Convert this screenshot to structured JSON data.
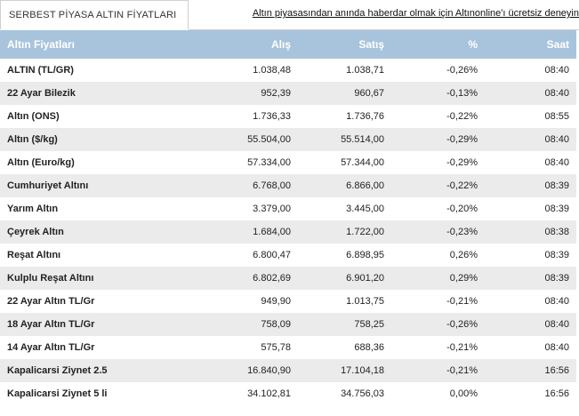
{
  "header": {
    "tab_title": "SERBEST PİYASA ALTIN FİYATLARI",
    "promo_link": "Altın piyasasından anında haberdar olmak için Altınonline'ı ücretsiz deneyin"
  },
  "table": {
    "columns": [
      "Altın Fiyatları",
      "Alış",
      "Satış",
      "%",
      "Saat"
    ],
    "rows": [
      {
        "name": "ALTIN (TL/GR)",
        "alis": "1.038,48",
        "satis": "1.038,71",
        "pct": "-0,26%",
        "saat": "08:40"
      },
      {
        "name": "22 Ayar Bilezik",
        "alis": "952,39",
        "satis": "960,67",
        "pct": "-0,13%",
        "saat": "08:40"
      },
      {
        "name": "Altın (ONS)",
        "alis": "1.736,33",
        "satis": "1.736,76",
        "pct": "-0,22%",
        "saat": "08:55"
      },
      {
        "name": "Altın ($/kg)",
        "alis": "55.504,00",
        "satis": "55.514,00",
        "pct": "-0,29%",
        "saat": "08:40"
      },
      {
        "name": "Altın (Euro/kg)",
        "alis": "57.334,00",
        "satis": "57.344,00",
        "pct": "-0,29%",
        "saat": "08:40"
      },
      {
        "name": "Cumhuriyet Altını",
        "alis": "6.768,00",
        "satis": "6.866,00",
        "pct": "-0,22%",
        "saat": "08:39"
      },
      {
        "name": "Yarım Altın",
        "alis": "3.379,00",
        "satis": "3.445,00",
        "pct": "-0,20%",
        "saat": "08:39"
      },
      {
        "name": "Çeyrek Altın",
        "alis": "1.684,00",
        "satis": "1.722,00",
        "pct": "-0,23%",
        "saat": "08:38"
      },
      {
        "name": "Reşat Altını",
        "alis": "6.800,47",
        "satis": "6.898,95",
        "pct": "0,26%",
        "saat": "08:39"
      },
      {
        "name": "Kulplu Reşat Altını",
        "alis": "6.802,69",
        "satis": "6.901,20",
        "pct": "0,29%",
        "saat": "08:39"
      },
      {
        "name": "22 Ayar Altın TL/Gr",
        "alis": "949,90",
        "satis": "1.013,75",
        "pct": "-0,21%",
        "saat": "08:40"
      },
      {
        "name": "18 Ayar Altın TL/Gr",
        "alis": "758,09",
        "satis": "758,25",
        "pct": "-0,26%",
        "saat": "08:40"
      },
      {
        "name": "14 Ayar Altın TL/Gr",
        "alis": "575,78",
        "satis": "688,36",
        "pct": "-0,21%",
        "saat": "08:40"
      },
      {
        "name": "Kapalicarsi Ziynet 2.5",
        "alis": "16.840,90",
        "satis": "17.104,18",
        "pct": "-0,21%",
        "saat": "16:56"
      },
      {
        "name": "Kapalicarsi Ziynet 5 li",
        "alis": "34.102,81",
        "satis": "34.756,03",
        "pct": "0,00%",
        "saat": "16:56"
      }
    ]
  }
}
